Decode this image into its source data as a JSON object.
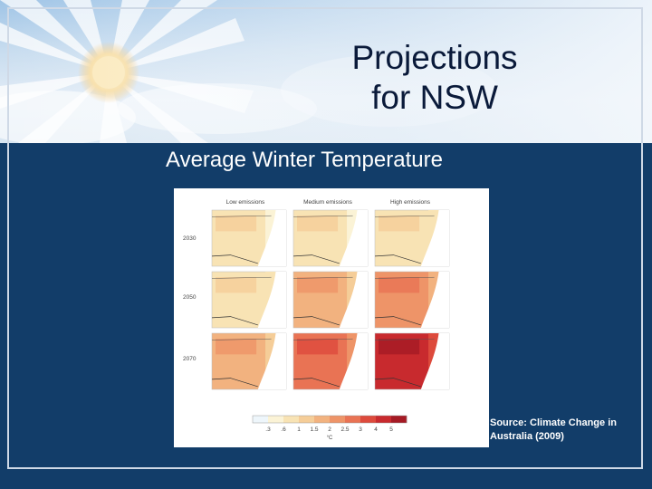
{
  "title_line1": "Projections",
  "title_line2": "for NSW",
  "subtitle": "Average Winter Temperature",
  "figure": {
    "columns": [
      "Low emissions",
      "Medium emissions",
      "High emissions"
    ],
    "rows": [
      "2030",
      "2050",
      "2070"
    ],
    "legend_ticks": [
      ".3",
      ".6",
      "1",
      "1.5",
      "2",
      "2.5",
      "3",
      "4",
      "5"
    ],
    "legend_unit": "°C",
    "palette": [
      "#eef6fb",
      "#fbf3d6",
      "#f8e3b4",
      "#f5cd98",
      "#f2b27f",
      "#ee9468",
      "#e97354",
      "#dd4a3c",
      "#c82a2e",
      "#a51a24"
    ]
  },
  "source_line1": "Source: Climate Change in",
  "source_line2": "Australia (2009)"
}
